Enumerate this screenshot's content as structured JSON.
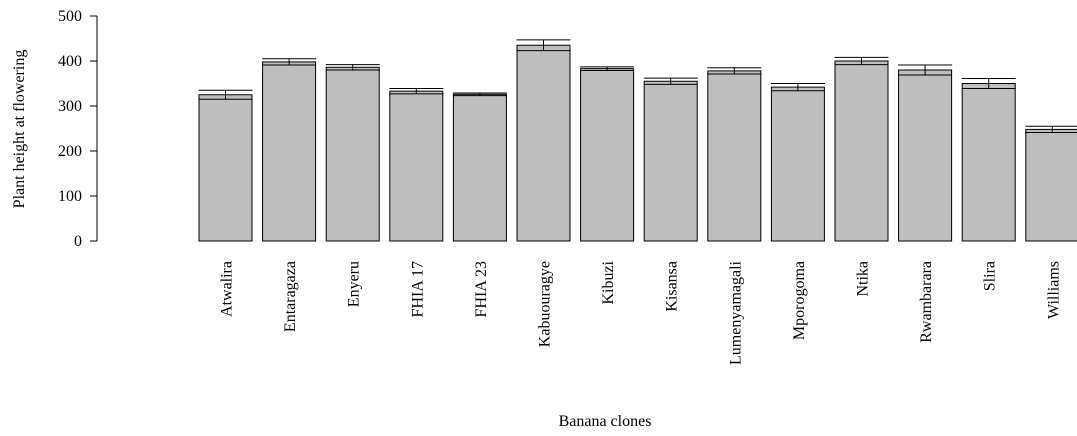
{
  "chart_data": {
    "type": "bar",
    "xlabel": "Banana clones",
    "ylabel": "Plant height at flowering",
    "ylim": [
      0,
      500
    ],
    "yticks": [
      0,
      100,
      200,
      300,
      400,
      500
    ],
    "error_bars": true,
    "grid": false,
    "colors": {
      "bar_fill": "#bebebe",
      "bar_stroke": "#000000"
    },
    "categories": [
      "Atwalira",
      "Entaragaza",
      "Enyeru",
      "FHIA 17",
      "FHIA 23",
      "Kabuouragye",
      "Kibuzi",
      "Kisansa",
      "Lumenyamagali",
      "Mporogoma",
      "Ntika",
      "Rwambarara",
      "Slira",
      "Williams"
    ],
    "values": [
      325,
      398,
      386,
      333,
      326,
      435,
      383,
      355,
      378,
      342,
      400,
      380,
      350,
      248
    ],
    "errors": [
      10,
      7,
      6,
      6,
      3,
      12,
      4,
      7,
      7,
      8,
      8,
      11,
      11,
      7
    ]
  }
}
